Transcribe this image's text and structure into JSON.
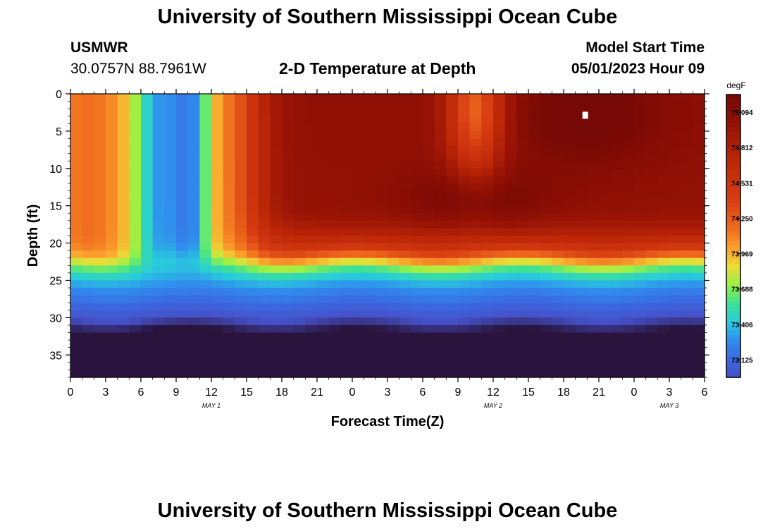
{
  "header": {
    "title": "University of Southern Mississippi Ocean Cube",
    "station_id": "USMWR",
    "station_coords": "30.0757N  88.7961W",
    "plot_title": "2-D Temperature at Depth",
    "model_label": "Model Start Time",
    "model_time": "05/01/2023 Hour 09",
    "footer_title": "University of Southern Mississippi Ocean Cube"
  },
  "chart_data": {
    "type": "heatmap",
    "title": "2-D Temperature at Depth",
    "xlabel": "Forecast Time(Z)",
    "ylabel": "Depth (ft)",
    "x_ticks": [
      "0",
      "3",
      "6",
      "9",
      "12",
      "15",
      "18",
      "21",
      "0",
      "3",
      "6",
      "9",
      "12",
      "15",
      "18",
      "21",
      "0",
      "3",
      "6"
    ],
    "x_hours_range": [
      0,
      54
    ],
    "date_labels": [
      {
        "label": "MAY 1",
        "hour": 12
      },
      {
        "label": "MAY 2",
        "hour": 36
      },
      {
        "label": "MAY 3",
        "hour": 51
      }
    ],
    "y_ticks": [
      0,
      5,
      10,
      15,
      20,
      25,
      30,
      35
    ],
    "ylim": [
      0,
      38
    ],
    "y_inverted": true,
    "colorbar": {
      "unit": "degF",
      "labels": [
        "75.094",
        "74.812",
        "74.531",
        "74.250",
        "73.969",
        "73.688",
        "73.406",
        "73.125"
      ],
      "range": [
        73.0,
        75.3
      ]
    },
    "grid_resolution": {
      "x_hours": 1,
      "y_ft": 1
    },
    "features": [
      {
        "desc": "warm core",
        "hour_range": [
          16,
          50
        ],
        "depth_range": [
          0,
          18
        ],
        "value_max": 75.2
      },
      {
        "desc": "cool upwelling columns",
        "hours": [
          7,
          10.5
        ],
        "depth_range": [
          0,
          20
        ],
        "value": 73.45
      },
      {
        "desc": "thermocline",
        "depth_approx": 22.5,
        "above": 74.3,
        "below": 73.2
      },
      {
        "desc": "cold pool",
        "hour_range": [
          47,
          54
        ],
        "depth_range": [
          35,
          38
        ],
        "value": 72.9
      }
    ]
  }
}
